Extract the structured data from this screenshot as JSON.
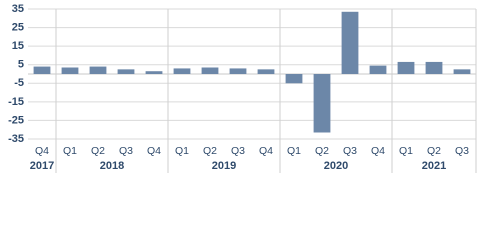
{
  "chart_data": {
    "type": "bar",
    "categories": [
      "Q4",
      "Q1",
      "Q2",
      "Q3",
      "Q4",
      "Q1",
      "Q2",
      "Q3",
      "Q4",
      "Q1",
      "Q2",
      "Q3",
      "Q4",
      "Q1",
      "Q2",
      "Q3"
    ],
    "groups": [
      {
        "label": "2017",
        "start": 0,
        "end": 0
      },
      {
        "label": "2018",
        "start": 1,
        "end": 4
      },
      {
        "label": "2019",
        "start": 5,
        "end": 8
      },
      {
        "label": "2020",
        "start": 9,
        "end": 12
      },
      {
        "label": "2021",
        "start": 13,
        "end": 15
      }
    ],
    "values": [
      4,
      3.5,
      4,
      2.5,
      1.5,
      3,
      3.5,
      3,
      2.5,
      -5,
      -31.5,
      33.5,
      4.5,
      6.5,
      6.5,
      2.5
    ],
    "color": "#6c87a8",
    "ylim": [
      -35,
      35
    ],
    "yticks": [
      35,
      25,
      15,
      5,
      -5,
      -15,
      -25,
      -35
    ],
    "grid": true
  }
}
